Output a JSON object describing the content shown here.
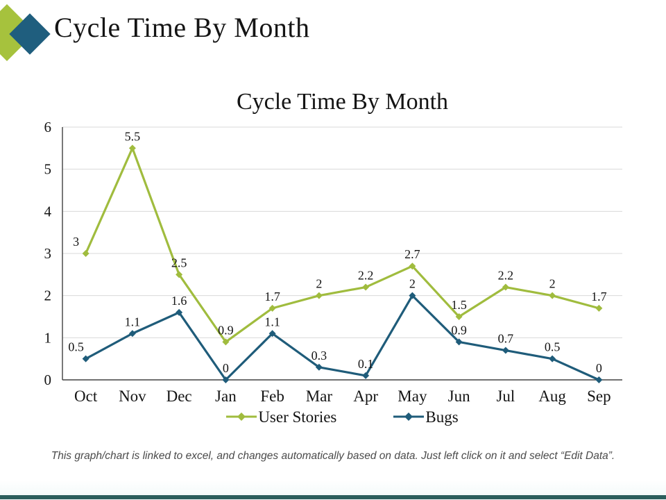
{
  "slide": {
    "header_title": "Cycle Time By Month",
    "footer_note": "This graph/chart is linked to excel, and changes automatically based on data. Just left click on it and select “Edit Data”.",
    "colors": {
      "logo_green": "#a6c23d",
      "logo_blue": "#1f5e7e",
      "bottom_bar": "#2b5e5c",
      "gridline": "#d9d9d9",
      "axis": "#404040",
      "text": "#141414"
    }
  },
  "chart_data": {
    "type": "line",
    "title": "Cycle Time By Month",
    "categories": [
      "Oct",
      "Nov",
      "Dec",
      "Jan",
      "Feb",
      "Mar",
      "Apr",
      "May",
      "Jun",
      "Jul",
      "Aug",
      "Sep"
    ],
    "series": [
      {
        "name": "User Stories",
        "color": "#a0bc3e",
        "values": [
          3,
          5.5,
          2.5,
          0.9,
          1.7,
          2,
          2.2,
          2.7,
          1.5,
          2.2,
          2,
          1.7
        ]
      },
      {
        "name": "Bugs",
        "color": "#1f5c7a",
        "values": [
          0.5,
          1.1,
          1.6,
          0,
          1.1,
          0.3,
          0.1,
          2,
          0.9,
          0.7,
          0.5,
          0
        ]
      }
    ],
    "xlabel": "",
    "ylabel": "",
    "ylim": [
      0,
      6
    ],
    "yticks": [
      0,
      1,
      2,
      3,
      4,
      5,
      6
    ],
    "grid": true,
    "legend_position": "bottom",
    "marker": "diamond",
    "data_labels": true
  }
}
